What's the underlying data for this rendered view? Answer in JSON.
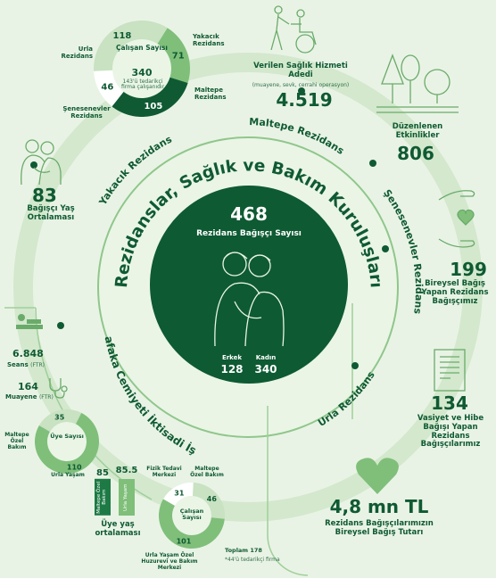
{
  "center": {
    "count": "468",
    "count_label": "Rezidans Bağışçı Sayısı",
    "male_label": "Erkek",
    "male_value": "128",
    "female_label": "Kadın",
    "female_value": "340"
  },
  "arc_title": "Rezidanslar, Sağlık ve Bakım Kuruluşları",
  "residences": [
    "Maltepe Rezidans",
    "Yakacık Rezidans",
    "Şenesenevler Rezidans",
    "Urla Rezidans"
  ],
  "enterprise_title": "Darüşşafaka Cemiyeti İktisadi İşletmesi",
  "top_donut": {
    "title": "Çalışan Sayısı",
    "total": "340",
    "note": "143'ü tedarikçi firma çalışanıdır",
    "segments": [
      {
        "label": "Yakacık Rezidans",
        "value": 71,
        "color": "#7fbf7a"
      },
      {
        "label": "Maltepe Rezidans",
        "value": 105,
        "color": "#0f5a33"
      },
      {
        "label": "Şenesenevler Rezidans",
        "value": 46,
        "color": "#ffffff"
      },
      {
        "label": "Urla Rezidans",
        "value": 118,
        "color": "#c8e2c2"
      }
    ]
  },
  "stats": {
    "age_avg": "83",
    "age_avg_label": "Bağışçı Yaş Ortalaması",
    "health_service": "4.519",
    "health_service_label": "Verilen Sağlık Hizmeti Adedi",
    "health_service_note": "(muayene, sevk, cerrahi operasyon)",
    "events": "806",
    "events_label": "Düzenlenen Etkinlikler",
    "individual_donors": "199",
    "individual_donors_label": "Bireysel Bağış Yapan Rezidans Bağışçımız",
    "will_donors": "134",
    "will_donors_label": "Vasiyet ve Hibe Bağışı Yapan Rezidans Bağışçılarımız",
    "donation_total": "4,8 mn TL",
    "donation_total_label": "Rezidans Bağışçılarımızın Bireysel Bağış Tutarı",
    "sessions": "6.848",
    "sessions_label": "Seans",
    "sessions_unit": "(FTR)",
    "exams": "164",
    "exams_label": "Muayene",
    "exams_unit": "(FTR)"
  },
  "left_donut": {
    "title": "Üye Sayısı",
    "segments": [
      {
        "label": "Maltepe Özel Bakım",
        "value": 35,
        "color": "#c8e2c2"
      },
      {
        "label": "Urla Yaşam",
        "value": 110,
        "color": "#7fbf7a"
      }
    ]
  },
  "age_bars": {
    "title": "Üye yaş ortalaması",
    "bars": [
      {
        "label": "Maltepe Özel Bakım",
        "value": "85",
        "color": "#1d7a45"
      },
      {
        "label": "Urla Yaşam",
        "value": "85.5",
        "color": "#7fbf7a"
      }
    ]
  },
  "bottom_donut": {
    "title": "Çalışan Sayısı",
    "total_label": "Toplam 178",
    "note": "*44'ü tedarikçi firma",
    "segments": [
      {
        "label": "Fizik Tedavi Merkezi",
        "value": 31,
        "color": "#ffffff"
      },
      {
        "label": "Maltepe Özel Bakım",
        "value": 46,
        "color": "#c8e2c2"
      },
      {
        "label": "Urla Yaşam Özel Huzurevi ve Bakım Merkezi",
        "value": 101,
        "color": "#7fbf7a"
      }
    ]
  }
}
